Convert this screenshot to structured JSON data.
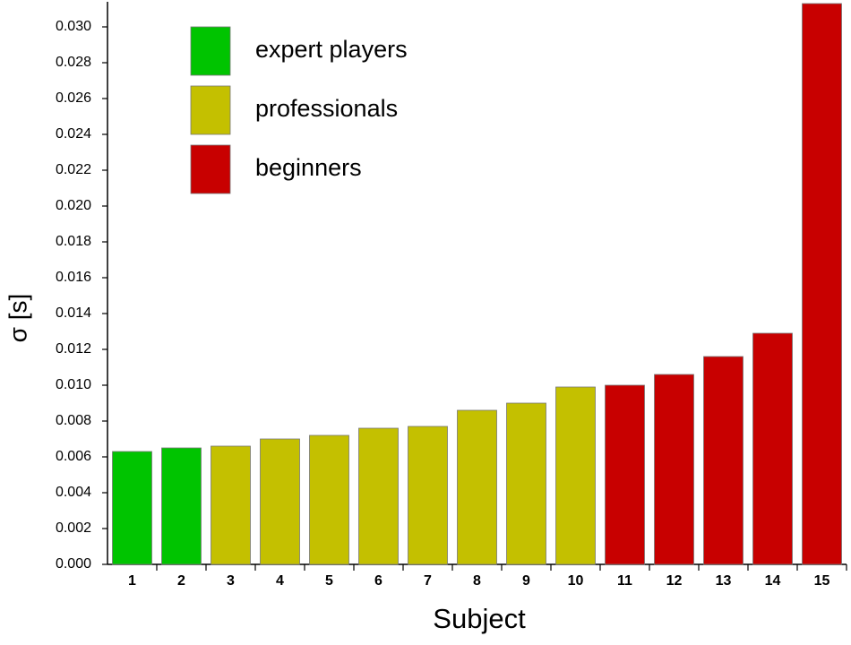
{
  "chart_data": {
    "type": "bar",
    "x_label": "Subject",
    "y_label": "σ [s]",
    "categories": [
      "1",
      "2",
      "3",
      "4",
      "5",
      "6",
      "7",
      "8",
      "9",
      "10",
      "11",
      "12",
      "13",
      "14",
      "15"
    ],
    "series": [
      {
        "name": "expert players",
        "color": "#00c400",
        "values": [
          0.0063,
          0.0065,
          null,
          null,
          null,
          null,
          null,
          null,
          null,
          null,
          null,
          null,
          null,
          null,
          null
        ]
      },
      {
        "name": "professionals",
        "color": "#c4c000",
        "values": [
          null,
          null,
          0.0066,
          0.007,
          0.0072,
          0.0076,
          0.0077,
          0.0086,
          0.009,
          0.0099,
          null,
          null,
          null,
          null,
          null
        ]
      },
      {
        "name": "beginners",
        "color": "#c80000",
        "values": [
          null,
          null,
          null,
          null,
          null,
          null,
          null,
          null,
          null,
          null,
          0.01,
          0.0106,
          0.0116,
          0.0129,
          0.0313
        ]
      }
    ],
    "ylim": [
      0,
      0.0314
    ],
    "yticks": [
      {
        "value": 0,
        "label": "0.000"
      },
      {
        "value": 0.002,
        "label": "0.002"
      },
      {
        "value": 0.004,
        "label": "0.004"
      },
      {
        "value": 0.006,
        "label": "0.006"
      },
      {
        "value": 0.008,
        "label": "0.008"
      },
      {
        "value": 0.01,
        "label": "0.010"
      },
      {
        "value": 0.012,
        "label": "0.012"
      },
      {
        "value": 0.014,
        "label": "0.014"
      },
      {
        "value": 0.016,
        "label": "0.016"
      },
      {
        "value": 0.018,
        "label": "0.018"
      },
      {
        "value": 0.02,
        "label": "0.020"
      },
      {
        "value": 0.022,
        "label": "0.022"
      },
      {
        "value": 0.024,
        "label": "0.024"
      },
      {
        "value": 0.026,
        "label": "0.026"
      },
      {
        "value": 0.028,
        "label": "0.028"
      },
      {
        "value": 0.03,
        "label": "0.030"
      }
    ],
    "grid": false,
    "legend": "top-left"
  }
}
